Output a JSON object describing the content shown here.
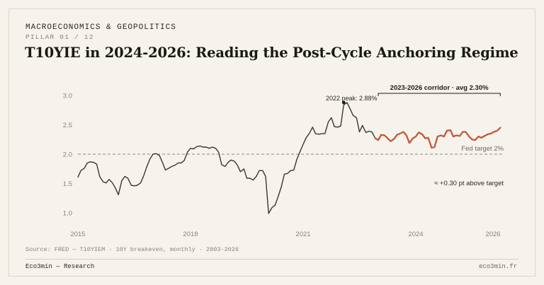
{
  "header": {
    "kicker": "MACROECONOMICS & GEOPOLITICS",
    "pillar": "PILLAR 01 / 12",
    "title": "T10YIE in 2024-2026: Reading the Post-Cycle Anchoring Regime"
  },
  "footer": {
    "source": "Source: FRED — T10YIEM · 10Y breakeven, monthly · 2003-2026",
    "brand": "Eco3min — Research",
    "domain": "eco3min.fr"
  },
  "colors": {
    "background": "#f6f3ec",
    "history_line": "#3a3733",
    "recent_line": "#c0593a",
    "reference_line": "#8f8a80",
    "axis_text": "#8a8479"
  },
  "chart_data": {
    "type": "line",
    "xlim": [
      2015,
      2026.4
    ],
    "ylim": [
      0.9,
      3.1
    ],
    "yticks": [
      1.0,
      1.5,
      2.0,
      2.5,
      3.0
    ],
    "ytick_labels": [
      "1.0",
      "1.5",
      "2.0",
      "2.5",
      "3.0"
    ],
    "xticks": [
      2015,
      2018,
      2021,
      2024,
      2026
    ],
    "xtick_labels": [
      "2015",
      "2018",
      "2021",
      "2024",
      "2026"
    ],
    "grid": false,
    "series": [
      {
        "segment": "history",
        "x": [
          2015.0,
          2015.08,
          2015.17,
          2015.25,
          2015.33,
          2015.42,
          2015.5,
          2015.58,
          2015.67,
          2015.75,
          2015.83,
          2015.92,
          2016.0,
          2016.08,
          2016.17,
          2016.25,
          2016.33,
          2016.42,
          2016.5,
          2016.58,
          2016.67,
          2016.75,
          2016.83,
          2016.92,
          2017.0,
          2017.08,
          2017.17,
          2017.25,
          2017.33,
          2017.42,
          2017.5,
          2017.58,
          2017.67,
          2017.75,
          2017.83,
          2017.92,
          2018.0,
          2018.08,
          2018.17,
          2018.25,
          2018.33,
          2018.42,
          2018.5,
          2018.58,
          2018.67,
          2018.75,
          2018.83,
          2018.92,
          2019.0,
          2019.08,
          2019.17,
          2019.25,
          2019.33,
          2019.42,
          2019.5,
          2019.58,
          2019.67,
          2019.75,
          2019.83,
          2019.92,
          2020.0,
          2020.08,
          2020.17,
          2020.25,
          2020.33,
          2020.42,
          2020.5,
          2020.58,
          2020.67,
          2020.75,
          2020.83,
          2020.92,
          2021.0,
          2021.08,
          2021.17,
          2021.25,
          2021.33,
          2021.42,
          2021.5,
          2021.58,
          2021.67,
          2021.75,
          2021.83,
          2021.92,
          2022.0,
          2022.08,
          2022.17,
          2022.25,
          2022.33,
          2022.42,
          2022.5,
          2022.58,
          2022.67,
          2022.75,
          2022.83,
          2022.92
        ],
        "values": [
          1.61,
          1.72,
          1.76,
          1.85,
          1.87,
          1.86,
          1.83,
          1.62,
          1.53,
          1.51,
          1.57,
          1.51,
          1.42,
          1.31,
          1.55,
          1.62,
          1.59,
          1.47,
          1.46,
          1.47,
          1.51,
          1.63,
          1.78,
          1.92,
          2.0,
          2.01,
          1.98,
          1.86,
          1.73,
          1.76,
          1.79,
          1.81,
          1.85,
          1.85,
          1.89,
          2.04,
          2.1,
          2.09,
          2.13,
          2.14,
          2.12,
          2.12,
          2.1,
          2.12,
          2.1,
          2.03,
          1.82,
          1.79,
          1.86,
          1.9,
          1.88,
          1.81,
          1.7,
          1.75,
          1.59,
          1.59,
          1.56,
          1.62,
          1.72,
          1.72,
          1.62,
          0.99,
          1.09,
          1.13,
          1.27,
          1.45,
          1.66,
          1.67,
          1.72,
          1.73,
          1.91,
          2.05,
          2.17,
          2.28,
          2.36,
          2.46,
          2.35,
          2.34,
          2.35,
          2.35,
          2.55,
          2.62,
          2.47,
          2.46,
          2.48,
          2.84,
          2.88,
          2.77,
          2.66,
          2.62,
          2.38,
          2.49,
          2.37,
          2.39,
          2.38,
          2.27
        ]
      },
      {
        "segment": "2023-2026 corridor",
        "x": [
          2022.92,
          2023.0,
          2023.08,
          2023.17,
          2023.25,
          2023.33,
          2023.42,
          2023.5,
          2023.58,
          2023.67,
          2023.75,
          2023.83,
          2023.92,
          2024.0,
          2024.08,
          2024.17,
          2024.25,
          2024.33,
          2024.42,
          2024.5,
          2024.58,
          2024.67,
          2024.75,
          2024.83,
          2024.92,
          2025.0,
          2025.08,
          2025.17,
          2025.25,
          2025.33,
          2025.42,
          2025.5,
          2025.58,
          2025.67,
          2025.75,
          2025.83,
          2025.92,
          2026.0,
          2026.08,
          2026.17,
          2026.25
        ],
        "values": [
          2.27,
          2.24,
          2.33,
          2.32,
          2.27,
          2.22,
          2.26,
          2.33,
          2.35,
          2.38,
          2.32,
          2.19,
          2.27,
          2.3,
          2.37,
          2.34,
          2.27,
          2.28,
          2.11,
          2.12,
          2.3,
          2.32,
          2.3,
          2.4,
          2.41,
          2.3,
          2.32,
          2.31,
          2.38,
          2.38,
          2.3,
          2.25,
          2.24,
          2.3,
          2.28,
          2.31,
          2.34,
          2.35,
          2.38,
          2.4,
          2.45
        ]
      }
    ],
    "reference_line": {
      "value": 2.0,
      "label": "Fed target 2%"
    },
    "annotations": {
      "peak_label": "2022 peak: 2.88%",
      "peak_x": 2022.08,
      "peak_y": 2.88,
      "corridor_label": "2023-2026 corridor · avg 2.30%",
      "corridor_range": [
        2023.0,
        2026.25
      ],
      "gap_label": "≈ +0.30 pt above target"
    }
  }
}
